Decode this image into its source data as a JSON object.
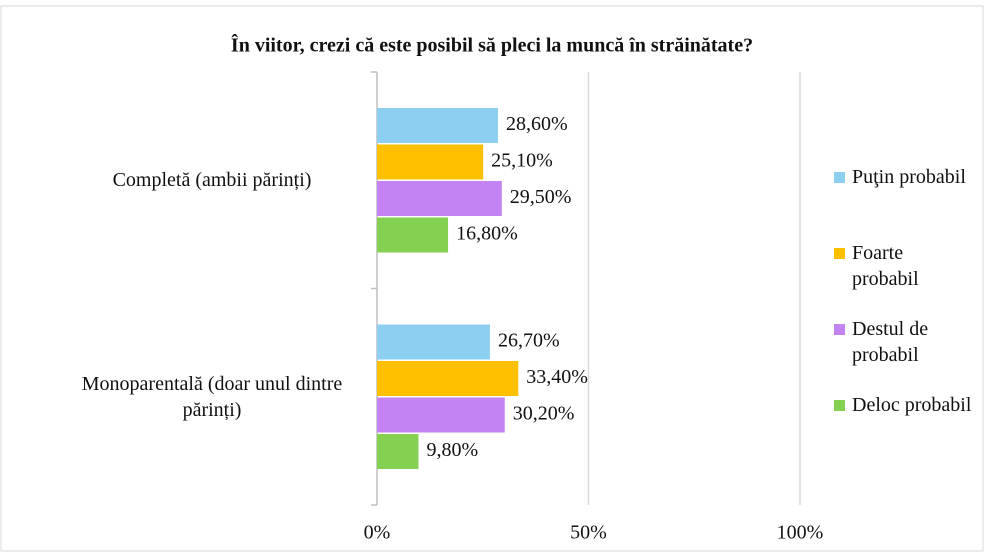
{
  "chart_data": {
    "type": "bar",
    "orientation": "horizontal",
    "title": "În viitor, crezi că este posibil să pleci la muncă în străinătate?",
    "categories": [
      "Completă (ambii părinți)",
      "Monoparentală (doar unul dintre părinți)"
    ],
    "series": [
      {
        "name": "Puţin probabil",
        "color": "#8ccff0",
        "values": [
          28.6,
          26.7
        ],
        "value_labels": [
          "28,60%",
          "26,70%"
        ]
      },
      {
        "name": "Foarte probabil",
        "color": "#ffc000",
        "values": [
          25.1,
          33.4
        ],
        "value_labels": [
          "25,10%",
          "33,40%"
        ]
      },
      {
        "name": "Destul de probabil",
        "color": "#c483f2",
        "values": [
          29.5,
          30.2
        ],
        "value_labels": [
          "29,50%",
          "30,20%"
        ]
      },
      {
        "name": "Deloc probabil",
        "color": "#84d152",
        "values": [
          16.8,
          9.8
        ],
        "value_labels": [
          "16,80%",
          "9,80%"
        ]
      }
    ],
    "xlim": [
      0,
      100
    ],
    "xticks": [
      {
        "value": 0,
        "label": "0%"
      },
      {
        "value": 50,
        "label": "50%"
      },
      {
        "value": 100,
        "label": "100%"
      }
    ],
    "grid": true,
    "legend": "right"
  }
}
